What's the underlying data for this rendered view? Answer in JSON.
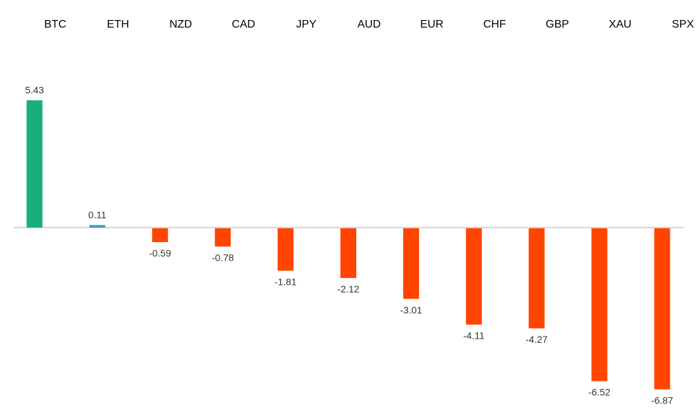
{
  "chart_data": {
    "type": "bar",
    "title": "",
    "xlabel": "",
    "ylabel": "",
    "categories": [
      "BTC",
      "ETH",
      "NZD",
      "CAD",
      "JPY",
      "AUD",
      "EUR",
      "CHF",
      "GBP",
      "XAU",
      "SPX"
    ],
    "values": [
      5.43,
      0.11,
      -0.59,
      -0.78,
      -1.81,
      -2.12,
      -3.01,
      -4.11,
      -4.27,
      -6.52,
      -6.87
    ],
    "value_labels": [
      "5.43",
      "0.11",
      "-0.59",
      "-0.78",
      "-1.81",
      "-2.12",
      "-3.01",
      "-4.11",
      "-4.27",
      "-6.52",
      "-6.87"
    ],
    "category_labels_position": "top",
    "grid": false,
    "legend": "none",
    "colors": {
      "positive_strong": "#1aaf7a",
      "positive_weak": "#3aa5b0",
      "negative": "#ff4500",
      "axis": "#c8c8c8",
      "text": "#000000"
    }
  }
}
